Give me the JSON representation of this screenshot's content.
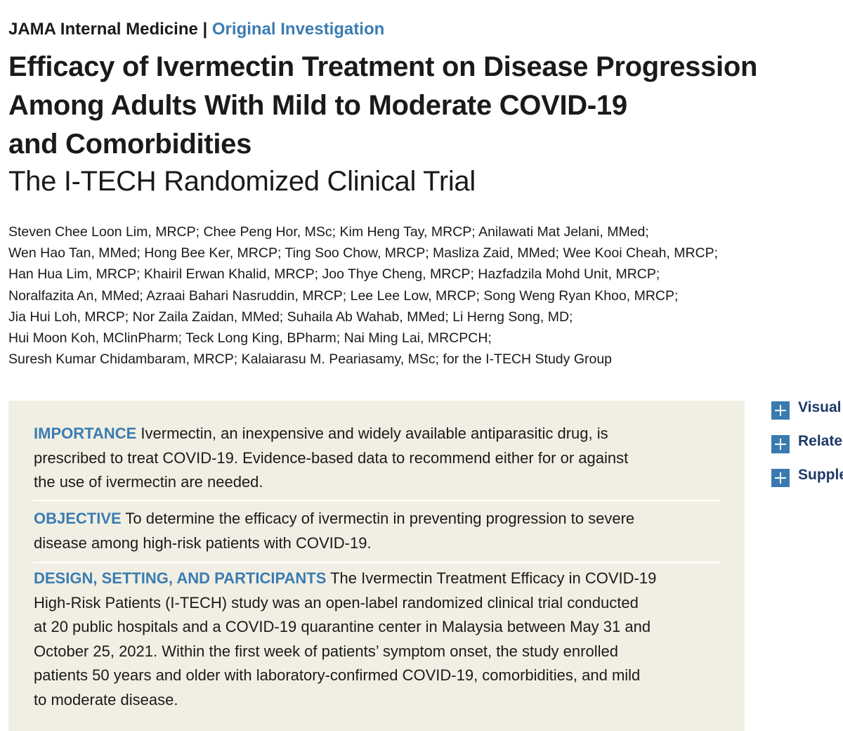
{
  "header": {
    "journal": "JAMA Internal Medicine",
    "separator": "|",
    "section": "Original Investigation"
  },
  "title_lines": [
    "Efficacy of Ivermectin Treatment on Disease Progression",
    "Among Adults With Mild to Moderate COVID-19",
    "and Comorbidities"
  ],
  "subtitle": "The I-TECH Randomized Clinical Trial",
  "author_lines": [
    "Steven Chee Loon Lim, MRCP; Chee Peng Hor, MSc; Kim Heng Tay, MRCP; Anilawati Mat Jelani, MMed;",
    "Wen Hao Tan, MMed; Hong Bee Ker, MRCP; Ting Soo Chow, MRCP; Masliza Zaid, MMed; Wee Kooi Cheah, MRCP;",
    "Han Hua Lim, MRCP; Khairil Erwan Khalid, MRCP; Joo Thye Cheng, MRCP; Hazfadzila Mohd Unit, MRCP;",
    "Noralfazita An, MMed; Azraai Bahari Nasruddin, MRCP; Lee Lee Low, MRCP; Song Weng Ryan Khoo, MRCP;",
    "Jia Hui Loh, MRCP; Nor Zaila Zaidan, MMed; Suhaila Ab Wahab, MMed; Li Herng Song, MD;",
    "Hui Moon Koh, MClinPharm; Teck Long King, BPharm; Nai Ming Lai, MRCPCH;",
    "Suresh Kumar Chidambaram, MRCP; Kalaiarasu M. Peariasamy, MSc; for the I-TECH Study Group"
  ],
  "abstract": [
    {
      "label": "IMPORTANCE",
      "lines": [
        "Ivermectin, an inexpensive and widely available antiparasitic drug, is",
        "prescribed to treat COVID-19. Evidence-based data to recommend either for or against",
        "the use of ivermectin are needed."
      ]
    },
    {
      "label": "OBJECTIVE",
      "lines": [
        "To determine the efficacy of ivermectin in preventing progression to severe",
        "disease among high-risk patients with COVID-19."
      ]
    },
    {
      "label": "DESIGN, SETTING, AND PARTICIPANTS",
      "lines": [
        "The Ivermectin Treatment Efficacy in COVID-19",
        "High-Risk Patients (I-TECH) study was an open-label randomized clinical trial conducted",
        "at 20 public hospitals and a COVID-19 quarantine center in Malaysia between May 31 and",
        "October 25, 2021. Within the first week of patients’ symptom onset, the study enrolled",
        "patients 50 years and older with laboratory-confirmed COVID-19, comorbidities, and mild",
        "to moderate disease."
      ]
    }
  ],
  "side_links": [
    "Visual A",
    "Relatec",
    "Supple"
  ]
}
